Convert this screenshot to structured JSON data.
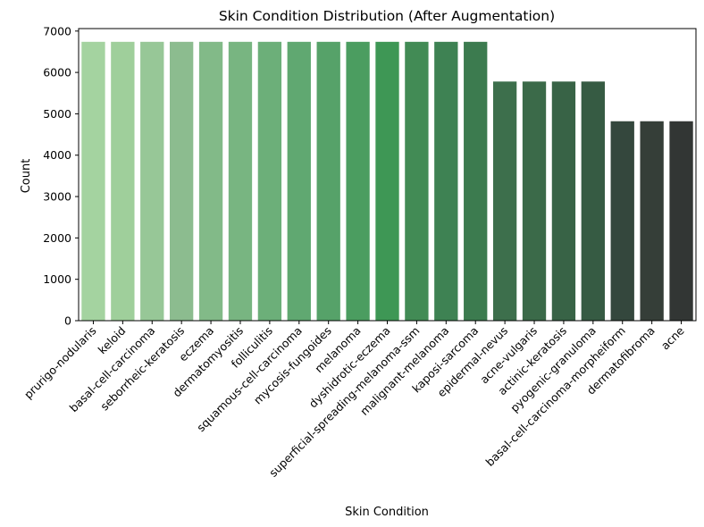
{
  "chart_data": {
    "type": "bar",
    "title": "Skin Condition Distribution (After Augmentation)",
    "xlabel": "Skin Condition",
    "ylabel": "Count",
    "ylim": [
      0,
      7000
    ],
    "yticks": [
      0,
      1000,
      2000,
      3000,
      4000,
      5000,
      6000,
      7000
    ],
    "grid": false,
    "legend": "none",
    "categories": [
      "prurigo-nodularis",
      "keloid",
      "basal-cell-carcinoma",
      "seborrheic-keratosis",
      "eczema",
      "dermatomyositis",
      "folliculitis",
      "squamous-cell-carcinoma",
      "mycosis-fungoides",
      "melanoma",
      "dyshidrotic-eczema",
      "superficial-spreading-melanoma-ssm",
      "malignant-melanoma",
      "kaposi-sarcoma",
      "epidermal-nevus",
      "acne-vulgaris",
      "actinic-keratosis",
      "pyogenic-granuloma",
      "basal-cell-carcinoma-morpheiform",
      "dermatofibroma",
      "acne"
    ],
    "values": [
      6740,
      6740,
      6740,
      6740,
      6740,
      6740,
      6740,
      6740,
      6740,
      6740,
      6740,
      6740,
      6740,
      6740,
      5780,
      5780,
      5780,
      5780,
      4820,
      4820,
      4820
    ],
    "colors": [
      "#a4d3a0",
      "#9fcf9b",
      "#97c797",
      "#8cbc8f",
      "#82ba88",
      "#78b581",
      "#6caf79",
      "#60a871",
      "#56a269",
      "#4b9d60",
      "#3e9755",
      "#428b55",
      "#3e8253",
      "#3c7b4f",
      "#3d6f4c",
      "#3b6a49",
      "#386346",
      "#365b43",
      "#34473d",
      "#353e38",
      "#323634"
    ]
  }
}
